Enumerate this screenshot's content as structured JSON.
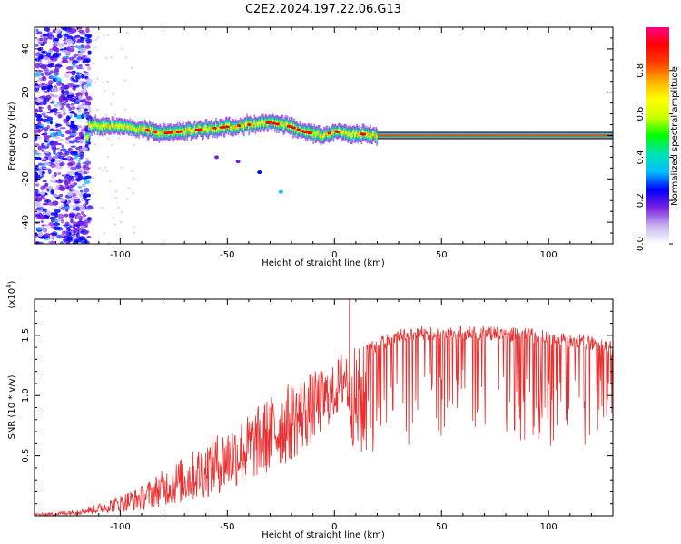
{
  "figure_title": "C2E2.2024.197.22.06.G13",
  "colorbar": {
    "label": "Normalized spectral amplitude",
    "ticks": [
      "0.0",
      "0.2",
      "0.4",
      "0.6",
      "0.8"
    ],
    "range": [
      0,
      1
    ],
    "colormap": [
      "#ffffff",
      "#c8b4f0",
      "#7a1fe0",
      "#0000ff",
      "#00bfff",
      "#00e5b0",
      "#00ff00",
      "#c8ff00",
      "#ffff00",
      "#ffb000",
      "#ff4000",
      "#ff0000",
      "#ff0080"
    ]
  },
  "chart_data": [
    {
      "type": "heatmap",
      "title": "",
      "xlabel": "Height of straight line (km)",
      "ylabel": "Frequency (Hz)",
      "xlim": [
        -140,
        130
      ],
      "ylim": [
        -50,
        50
      ],
      "x_ticks": [
        "-100",
        "-50",
        "0",
        "50",
        "100"
      ],
      "y_ticks": [
        "-40",
        "-20",
        "0",
        "20",
        "40"
      ],
      "grid": false,
      "main_track_freq_hz": [
        [
          -115,
          5
        ],
        [
          -100,
          4
        ],
        [
          -90,
          3
        ],
        [
          -80,
          1
        ],
        [
          -70,
          2
        ],
        [
          -60,
          3
        ],
        [
          -50,
          4
        ],
        [
          -40,
          5
        ],
        [
          -30,
          6
        ],
        [
          -20,
          4
        ],
        [
          -15,
          2
        ],
        [
          -10,
          1
        ],
        [
          -5,
          0
        ],
        [
          0,
          2
        ],
        [
          5,
          1
        ],
        [
          10,
          1
        ],
        [
          20,
          0
        ],
        [
          130,
          0
        ]
      ],
      "secondary_track_freq_hz": [
        [
          -55,
          -10
        ],
        [
          -45,
          -12
        ],
        [
          -35,
          -17
        ],
        [
          -25,
          -26
        ]
      ]
    },
    {
      "type": "line",
      "title": "",
      "xlabel": "Height of straight line (km)",
      "ylabel": "SNR (10 * v/v)",
      "y_multiplier": "(x10",
      "y_multiplier_exp": "4",
      "xlim": [
        -140,
        130
      ],
      "ylim": [
        0,
        1.8
      ],
      "x_ticks": [
        "-100",
        "-50",
        "0",
        "50",
        "100"
      ],
      "y_ticks": [
        "0.5",
        "1.0",
        "1.5"
      ],
      "grid": false,
      "color": "#e83030",
      "series": [
        {
          "name": "",
          "envelope_x": [
            -140,
            -130,
            -120,
            -110,
            -100,
            -90,
            -80,
            -70,
            -60,
            -50,
            -40,
            -30,
            -20,
            -10,
            0,
            5,
            10,
            20,
            30,
            40,
            50,
            60,
            70,
            80,
            90,
            100,
            110,
            120,
            130
          ],
          "envelope_upper": [
            0.02,
            0.03,
            0.06,
            0.1,
            0.18,
            0.25,
            0.38,
            0.5,
            0.62,
            0.75,
            0.85,
            1.0,
            1.12,
            1.2,
            1.25,
            1.45,
            1.4,
            1.48,
            1.55,
            1.58,
            1.57,
            1.58,
            1.58,
            1.57,
            1.56,
            1.55,
            1.52,
            1.5,
            1.45
          ],
          "envelope_lower": [
            0.0,
            0.0,
            0.01,
            0.02,
            0.03,
            0.05,
            0.08,
            0.1,
            0.15,
            0.2,
            0.28,
            0.35,
            0.45,
            0.6,
            0.8,
            0.9,
            0.45,
            0.5,
            0.55,
            0.6,
            0.65,
            0.7,
            0.7,
            0.68,
            0.6,
            0.55,
            0.55,
            0.6,
            0.85
          ]
        }
      ]
    }
  ]
}
